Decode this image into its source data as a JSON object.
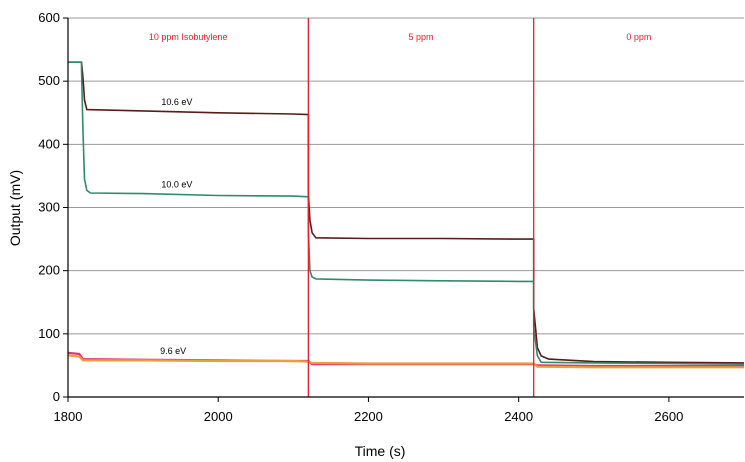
{
  "chart_data": {
    "type": "line",
    "title": "",
    "xlabel": "Time (s)",
    "ylabel": "Output (mV)",
    "xlim": [
      1800,
      2700
    ],
    "ylim": [
      0,
      600
    ],
    "x_ticks": [
      "1800",
      "2000",
      "2200",
      "2400",
      "2600"
    ],
    "y_ticks": [
      "0",
      "100",
      "200",
      "300",
      "400",
      "500",
      "600"
    ],
    "grid": "horizontal",
    "colors": {
      "series_10_6": "#5a1a1a",
      "series_10_0": "#2e8b6e",
      "series_9_6_a": "#e8307a",
      "series_9_6_b": "#e8a03a",
      "markers": "#e8202a"
    },
    "region_markers": [
      2120,
      2420
    ],
    "region_labels": [
      {
        "label": "10 ppm Isobutylene",
        "x": 1960,
        "y": 565
      },
      {
        "label": "5 ppm",
        "x": 2270,
        "y": 565
      },
      {
        "label": "0 ppm",
        "x": 2560,
        "y": 565
      }
    ],
    "series_labels": [
      {
        "label": "10.6 eV",
        "x": 1945,
        "y": 462
      },
      {
        "label": "10.0 eV",
        "x": 1945,
        "y": 332
      },
      {
        "label": "9.6 eV",
        "x": 1940,
        "y": 68
      }
    ],
    "series": [
      {
        "id": "10.6",
        "color_key": "series_10_6",
        "x": [
          1800,
          1818,
          1818,
          1820,
          1822,
          1825,
          1900,
          2000,
          2100,
          2120,
          2120,
          2122,
          2125,
          2130,
          2200,
          2300,
          2400,
          2420,
          2420,
          2425,
          2430,
          2440,
          2500,
          2600,
          2700
        ],
        "y": [
          530,
          530,
          530,
          505,
          470,
          455,
          453,
          450,
          448,
          447,
          320,
          280,
          260,
          252,
          251,
          251,
          250,
          250,
          140,
          78,
          65,
          60,
          56,
          55,
          54
        ]
      },
      {
        "id": "10.0",
        "color_key": "series_10_0",
        "x": [
          1800,
          1818,
          1818,
          1820,
          1822,
          1825,
          1830,
          1900,
          2000,
          2100,
          2120,
          2120,
          2122,
          2125,
          2130,
          2200,
          2300,
          2400,
          2420,
          2420,
          2425,
          2430,
          2500,
          2600,
          2700
        ],
        "y": [
          530,
          530,
          520,
          420,
          345,
          327,
          323,
          322,
          319,
          318,
          317,
          260,
          200,
          190,
          187,
          185,
          184,
          183,
          183,
          110,
          65,
          55,
          54,
          53,
          52
        ]
      },
      {
        "id": "9.6-a",
        "color_key": "series_9_6_a",
        "x": [
          1800,
          1815,
          1820,
          1900,
          2000,
          2100,
          2120,
          2125,
          2200,
          2300,
          2400,
          2420,
          2425,
          2500,
          2600,
          2700
        ],
        "y": [
          70,
          68,
          60,
          59,
          58,
          57,
          57,
          52,
          52,
          52,
          52,
          52,
          50,
          49,
          49,
          49
        ]
      },
      {
        "id": "9.6-b",
        "color_key": "series_9_6_b",
        "x": [
          1800,
          1815,
          1820,
          1900,
          2000,
          2100,
          2120,
          2125,
          2200,
          2300,
          2400,
          2420,
          2425,
          2500,
          2600,
          2700
        ],
        "y": [
          66,
          64,
          58,
          58,
          57,
          57,
          56,
          54,
          53,
          53,
          53,
          53,
          48,
          47,
          47,
          47
        ]
      }
    ]
  }
}
